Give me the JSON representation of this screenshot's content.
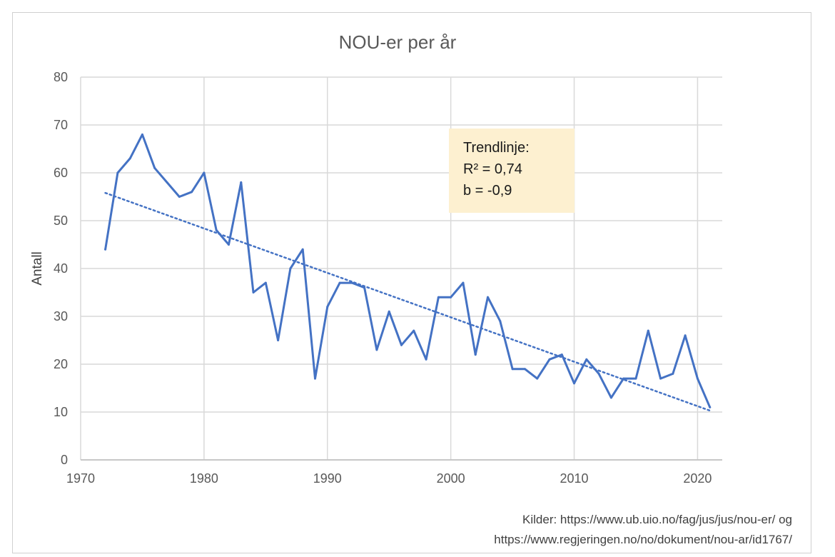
{
  "chart_data": {
    "type": "line",
    "title": "NOU-er per år",
    "xlabel": "",
    "ylabel": "Antall",
    "xlim": [
      1970,
      2022
    ],
    "ylim": [
      0,
      80
    ],
    "x_ticks": [
      1970,
      1980,
      1990,
      2000,
      2010,
      2020
    ],
    "y_ticks": [
      0,
      10,
      20,
      30,
      40,
      50,
      60,
      70,
      80
    ],
    "grid": true,
    "series": [
      {
        "color": "#4472c4",
        "x": [
          1972,
          1973,
          1974,
          1975,
          1976,
          1977,
          1978,
          1979,
          1980,
          1981,
          1982,
          1983,
          1984,
          1985,
          1986,
          1987,
          1988,
          1989,
          1990,
          1991,
          1992,
          1993,
          1994,
          1995,
          1996,
          1997,
          1998,
          1999,
          2000,
          2001,
          2002,
          2003,
          2004,
          2005,
          2006,
          2007,
          2008,
          2009,
          2010,
          2011,
          2012,
          2013,
          2014,
          2015,
          2016,
          2017,
          2018,
          2019,
          2020,
          2021
        ],
        "values": [
          44,
          60,
          63,
          68,
          61,
          58,
          55,
          56,
          60,
          48,
          45,
          58,
          35,
          37,
          25,
          40,
          44,
          17,
          32,
          37,
          37,
          36,
          23,
          31,
          24,
          27,
          21,
          34,
          34,
          37,
          22,
          34,
          29,
          19,
          19,
          17,
          21,
          22,
          16,
          21,
          18,
          13,
          17,
          17,
          27,
          17,
          18,
          26,
          17,
          11
        ]
      }
    ],
    "trendline": {
      "style": "dotted",
      "color": "#4472c4",
      "x": [
        1972,
        2021
      ],
      "values": [
        55.8,
        10.3
      ]
    },
    "annotation": {
      "line1": "Trendlinje:",
      "line2": "R² = 0,74",
      "line3": "b = -0,9"
    }
  },
  "sources": {
    "line1": "Kilder: https://www.ub.uio.no/fag/jus/jus/nou-er/ og",
    "line2": "https://www.regjeringen.no/no/dokument/nou-ar/id1767/"
  }
}
